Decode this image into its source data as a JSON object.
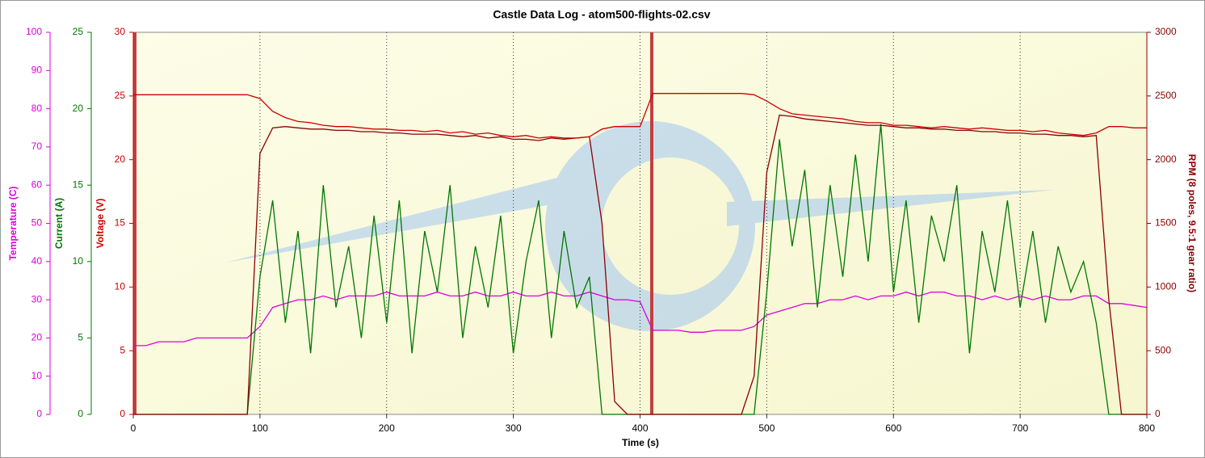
{
  "chart_data": {
    "type": "line",
    "title": "Castle Data Log - atom500-flights-02.csv",
    "xlabel": "Time (s)",
    "x": [
      0,
      10,
      20,
      30,
      40,
      50,
      60,
      70,
      80,
      90,
      100,
      110,
      120,
      130,
      140,
      150,
      160,
      170,
      180,
      190,
      200,
      210,
      220,
      230,
      240,
      250,
      260,
      270,
      280,
      290,
      300,
      310,
      320,
      330,
      340,
      350,
      360,
      370,
      380,
      390,
      400,
      410,
      420,
      430,
      440,
      450,
      460,
      470,
      480,
      490,
      500,
      510,
      520,
      530,
      540,
      550,
      560,
      570,
      580,
      590,
      600,
      610,
      620,
      630,
      640,
      650,
      660,
      670,
      680,
      690,
      700,
      710,
      720,
      730,
      740,
      750,
      760,
      770,
      780,
      790,
      800
    ],
    "xlim": [
      0,
      800
    ],
    "xticks": [
      0,
      100,
      200,
      300,
      400,
      500,
      600,
      700,
      800
    ],
    "ylabel": "Voltage (V)",
    "ylim": [
      0,
      30
    ],
    "yticks": [
      0,
      5,
      10,
      15,
      20,
      25,
      30
    ],
    "y2label": "RPM (8 poles, 9.5:1 gear ratio)",
    "y2lim": [
      0,
      3000
    ],
    "y2ticks": [
      0,
      500,
      1000,
      1500,
      2000,
      2500,
      3000
    ],
    "y3label": "Current (A)",
    "y3lim": [
      0,
      25
    ],
    "y3ticks": [
      0,
      5,
      10,
      15,
      20,
      25
    ],
    "y4label": "Temperature (C)",
    "y4lim": [
      0,
      100
    ],
    "y4ticks": [
      0,
      10,
      20,
      30,
      40,
      50,
      60,
      70,
      80,
      90,
      100
    ],
    "grid": true,
    "series": [
      {
        "name": "Voltage",
        "color": "#cc0000",
        "axis": "y",
        "values": [
          25.1,
          25.1,
          25.1,
          25.1,
          25.1,
          25.1,
          25.1,
          25.1,
          25.1,
          25.1,
          24.8,
          23.8,
          23.3,
          23.0,
          22.9,
          22.7,
          22.6,
          22.6,
          22.5,
          22.4,
          22.4,
          22.3,
          22.3,
          22.2,
          22.3,
          22.1,
          22.2,
          22.0,
          22.1,
          21.9,
          21.8,
          21.9,
          21.7,
          21.8,
          21.7,
          21.7,
          21.8,
          22.4,
          22.6,
          22.6,
          22.6,
          25.2,
          25.2,
          25.2,
          25.2,
          25.2,
          25.2,
          25.2,
          25.2,
          25.1,
          24.6,
          24.0,
          23.6,
          23.5,
          23.4,
          23.3,
          23.2,
          23.0,
          22.9,
          22.9,
          22.7,
          22.7,
          22.6,
          22.5,
          22.6,
          22.5,
          22.4,
          22.5,
          22.4,
          22.3,
          22.3,
          22.2,
          22.3,
          22.1,
          22.0,
          21.9,
          22.1,
          22.6,
          22.6,
          22.5,
          22.5
        ]
      },
      {
        "name": "RPM",
        "color": "#8b0000",
        "axis": "y2",
        "values": [
          0,
          0,
          0,
          0,
          0,
          0,
          0,
          0,
          0,
          0,
          2050,
          2250,
          2260,
          2250,
          2240,
          2240,
          2230,
          2230,
          2220,
          2220,
          2210,
          2210,
          2200,
          2200,
          2200,
          2190,
          2180,
          2190,
          2170,
          2180,
          2160,
          2160,
          2150,
          2170,
          2160,
          2170,
          2180,
          1500,
          100,
          0,
          0,
          0,
          0,
          0,
          0,
          0,
          0,
          0,
          0,
          300,
          1900,
          2350,
          2340,
          2320,
          2310,
          2300,
          2290,
          2280,
          2270,
          2270,
          2260,
          2250,
          2250,
          2240,
          2240,
          2230,
          2230,
          2220,
          2220,
          2210,
          2210,
          2200,
          2200,
          2190,
          2190,
          2180,
          2190,
          900,
          0,
          0,
          0
        ]
      },
      {
        "name": "Current",
        "color": "#007700",
        "axis": "y3",
        "values": [
          0,
          0,
          0,
          0,
          0,
          0,
          0,
          0,
          0,
          0,
          9,
          14,
          6,
          12,
          4,
          15,
          7,
          11,
          5,
          13,
          6,
          14,
          4,
          12,
          8,
          15,
          5,
          11,
          7,
          13,
          4,
          10,
          14,
          5,
          12,
          7,
          9,
          0,
          0,
          0,
          0,
          0,
          0,
          0,
          0,
          0,
          0,
          0,
          0,
          0,
          8,
          18,
          11,
          16,
          7,
          15,
          9,
          17,
          10,
          19,
          8,
          14,
          6,
          13,
          10,
          15,
          4,
          12,
          8,
          14,
          7,
          12,
          6,
          11,
          8,
          10,
          6,
          0,
          0,
          0,
          0
        ]
      },
      {
        "name": "Temperature",
        "color": "#dd00dd",
        "axis": "y4",
        "values": [
          18,
          18,
          19,
          19,
          19,
          20,
          20,
          20,
          20,
          20,
          23,
          28,
          29,
          30,
          30,
          31,
          30,
          31,
          31,
          31,
          32,
          31,
          31,
          31,
          32,
          31,
          31,
          32,
          31,
          31,
          32,
          31,
          31,
          32,
          31,
          31,
          32,
          31,
          30,
          30,
          29.5,
          22,
          22,
          22,
          21.5,
          21.5,
          22,
          22,
          22,
          23,
          26,
          27,
          28,
          29,
          29,
          30,
          30,
          31,
          30,
          31,
          31,
          32,
          31,
          32,
          32,
          31,
          31,
          30,
          31,
          30,
          31,
          30,
          31,
          30,
          30,
          31,
          31,
          29,
          29,
          28.5,
          28
        ]
      }
    ]
  }
}
